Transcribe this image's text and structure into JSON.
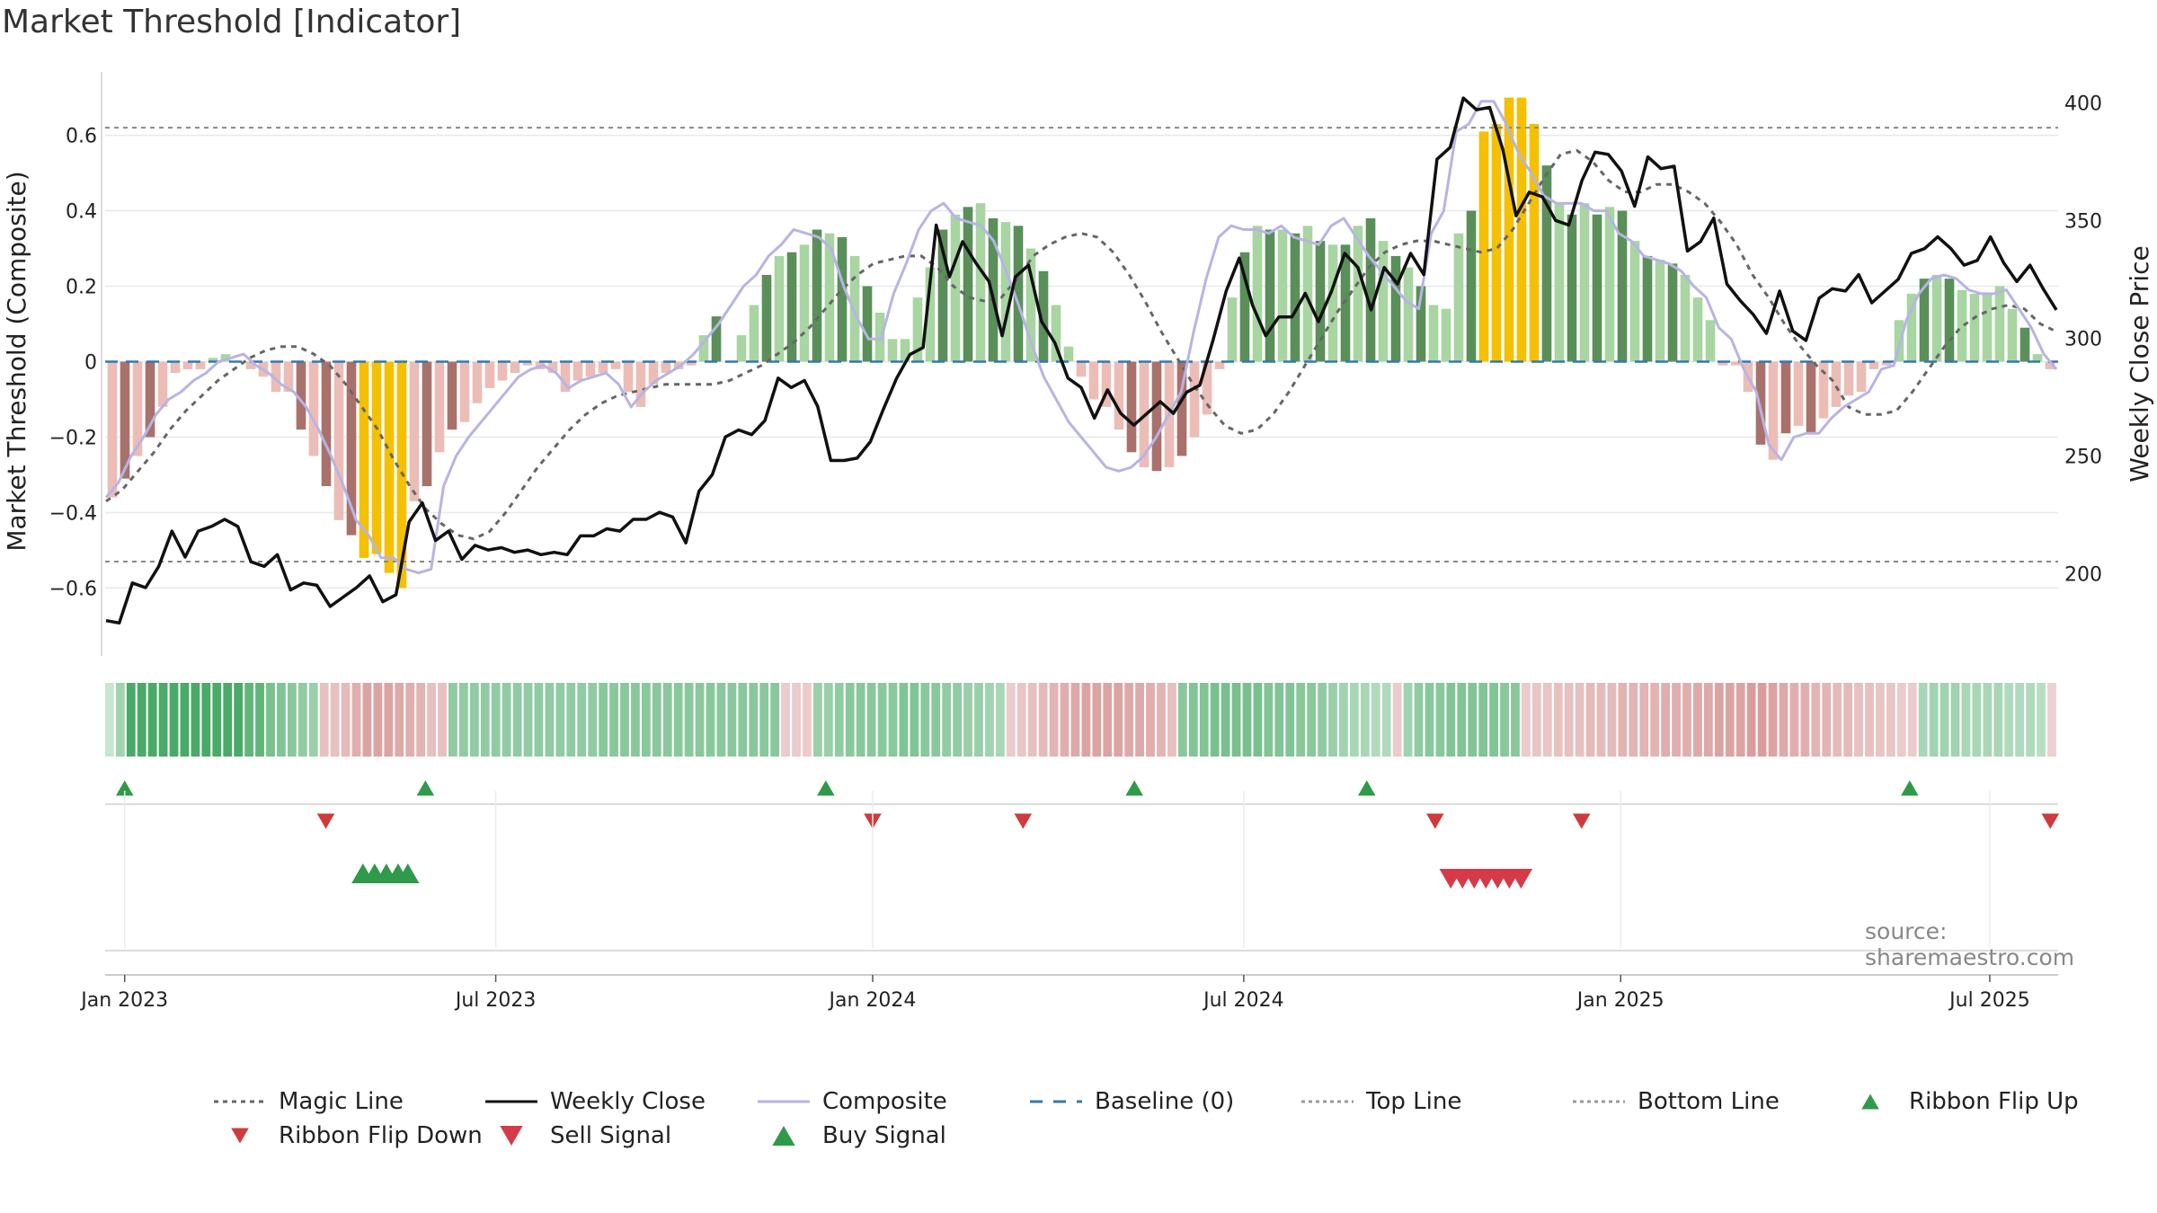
{
  "title": "Market Threshold [Indicator]",
  "source": "source: sharemaestro.com",
  "chart_data": {
    "type": "bar",
    "left_axis": {
      "label": "Market Threshold (Composite)",
      "ticks": [
        0.6,
        0.4,
        0.2,
        0,
        -0.2,
        -0.4,
        -0.6
      ],
      "tick_labels": [
        "0.6",
        "0.4",
        "0.2",
        "0",
        "−0.2",
        "−0.4",
        "−0.6"
      ],
      "ylim": [
        -0.78,
        0.78
      ]
    },
    "right_axis": {
      "label": "Weekly Close Price",
      "ticks": [
        400,
        350,
        300,
        250,
        200
      ],
      "tick_labels": [
        "400",
        "350",
        "300",
        "250",
        "200"
      ],
      "ylim": [
        165,
        415
      ]
    },
    "x_ticks": [
      "Jan 2023",
      "Jul 2023",
      "Jan 2024",
      "Jul 2024",
      "Jan 2025",
      "Jul 2025"
    ],
    "top_line": 0.62,
    "bottom_line": -0.53,
    "grid": true,
    "legend_position": "bottom",
    "composite": [
      -0.36,
      -0.32,
      -0.25,
      -0.2,
      -0.14,
      -0.1,
      -0.08,
      -0.05,
      -0.03,
      0.0,
      0.01,
      0.02,
      -0.01,
      -0.03,
      -0.06,
      -0.08,
      -0.12,
      -0.18,
      -0.25,
      -0.33,
      -0.42,
      -0.46,
      -0.52,
      -0.52,
      -0.55,
      -0.56,
      -0.55,
      -0.33,
      -0.25,
      -0.2,
      -0.16,
      -0.12,
      -0.08,
      -0.04,
      -0.02,
      -0.01,
      -0.03,
      -0.07,
      -0.05,
      -0.04,
      -0.03,
      -0.06,
      -0.12,
      -0.08,
      -0.05,
      -0.03,
      -0.01,
      0.02,
      0.06,
      0.1,
      0.15,
      0.2,
      0.23,
      0.28,
      0.31,
      0.35,
      0.34,
      0.33,
      0.3,
      0.2,
      0.12,
      0.06,
      0.06,
      0.18,
      0.26,
      0.35,
      0.4,
      0.42,
      0.38,
      0.37,
      0.36,
      0.32,
      0.24,
      0.15,
      0.05,
      -0.04,
      -0.1,
      -0.16,
      -0.2,
      -0.24,
      -0.28,
      -0.29,
      -0.28,
      -0.25,
      -0.2,
      -0.14,
      -0.08,
      0.08,
      0.22,
      0.33,
      0.36,
      0.35,
      0.35,
      0.34,
      0.36,
      0.33,
      0.32,
      0.31,
      0.36,
      0.38,
      0.33,
      0.28,
      0.24,
      0.2,
      0.16,
      0.14,
      0.34,
      0.4,
      0.61,
      0.63,
      0.69,
      0.69,
      0.63,
      0.55,
      0.5,
      0.44,
      0.42,
      0.42,
      0.42,
      0.4,
      0.4,
      0.34,
      0.32,
      0.28,
      0.27,
      0.26,
      0.24,
      0.2,
      0.17,
      0.09,
      0.06,
      -0.02,
      -0.08,
      -0.22,
      -0.26,
      -0.2,
      -0.19,
      -0.19,
      -0.15,
      -0.12,
      -0.1,
      -0.08,
      -0.02,
      -0.01,
      0.11,
      0.18,
      0.22,
      0.23,
      0.22,
      0.19,
      0.18,
      0.18,
      0.19,
      0.14,
      0.09,
      0.02,
      -0.02
    ],
    "weekly_close": [
      180,
      179,
      196,
      194,
      203,
      218,
      207,
      218,
      220,
      223,
      220,
      205,
      203,
      208,
      193,
      196,
      195,
      186,
      190,
      194,
      199,
      188,
      191,
      222,
      230,
      214,
      218,
      206,
      212,
      210,
      211,
      209,
      210,
      208,
      209,
      208,
      216,
      216,
      219,
      218,
      223,
      223,
      226,
      224,
      213,
      235,
      242,
      258,
      261,
      259,
      265,
      283,
      279,
      282,
      271,
      248,
      248,
      249,
      256,
      270,
      283,
      293,
      296,
      348,
      326,
      341,
      332,
      324,
      301,
      326,
      331,
      307,
      298,
      283,
      279,
      266,
      278,
      268,
      263,
      268,
      273,
      268,
      277,
      280,
      299,
      320,
      334,
      314,
      301,
      309,
      309,
      319,
      307,
      320,
      336,
      330,
      312,
      330,
      323,
      336,
      327,
      376,
      381,
      402,
      397,
      398,
      380,
      352,
      362,
      360,
      350,
      348,
      367,
      379,
      378,
      371,
      356,
      377,
      372,
      373,
      337,
      341,
      351,
      323,
      316,
      310,
      302,
      320,
      303,
      299,
      317,
      321,
      320,
      327,
      315,
      320,
      325,
      336,
      338,
      343,
      338,
      331,
      333,
      343,
      332,
      324,
      331,
      321,
      312
    ],
    "magic_line": [
      -0.37,
      -0.34,
      -0.29,
      -0.24,
      -0.18,
      -0.13,
      -0.09,
      -0.05,
      -0.02,
      0.01,
      0.03,
      0.04,
      0.04,
      0.02,
      -0.01,
      -0.06,
      -0.12,
      -0.18,
      -0.26,
      -0.33,
      -0.39,
      -0.43,
      -0.46,
      -0.47,
      -0.45,
      -0.4,
      -0.34,
      -0.28,
      -0.23,
      -0.18,
      -0.14,
      -0.11,
      -0.09,
      -0.08,
      -0.07,
      -0.06,
      -0.06,
      -0.06,
      -0.06,
      -0.05,
      -0.03,
      -0.01,
      0.02,
      0.05,
      0.09,
      0.14,
      0.19,
      0.23,
      0.26,
      0.27,
      0.28,
      0.28,
      0.25,
      0.2,
      0.17,
      0.16,
      0.17,
      0.22,
      0.28,
      0.31,
      0.33,
      0.34,
      0.33,
      0.29,
      0.23,
      0.16,
      0.08,
      0.01,
      -0.06,
      -0.12,
      -0.17,
      -0.19,
      -0.18,
      -0.14,
      -0.08,
      -0.01,
      0.06,
      0.13,
      0.19,
      0.25,
      0.29,
      0.31,
      0.32,
      0.32,
      0.31,
      0.3,
      0.29,
      0.3,
      0.35,
      0.42,
      0.49,
      0.55,
      0.56,
      0.53,
      0.48,
      0.45,
      0.45,
      0.47,
      0.47,
      0.45,
      0.42,
      0.37,
      0.31,
      0.23,
      0.17,
      0.1,
      0.04,
      -0.01,
      -0.05,
      -0.12,
      -0.14,
      -0.14,
      -0.13,
      -0.08,
      -0.02,
      0.04,
      0.09,
      0.12,
      0.14,
      0.15,
      0.14,
      0.1,
      0.08
    ],
    "bars": [
      -0.36,
      -0.31,
      -0.25,
      -0.2,
      -0.12,
      -0.03,
      -0.02,
      -0.02,
      0.01,
      0.02,
      0,
      -0.02,
      -0.04,
      -0.08,
      -0.08,
      -0.18,
      -0.25,
      -0.33,
      -0.42,
      -0.46,
      -0.52,
      -0.51,
      -0.56,
      -0.6,
      -0.37,
      -0.33,
      -0.24,
      -0.18,
      -0.16,
      -0.11,
      -0.07,
      -0.05,
      -0.03,
      -0.01,
      -0.02,
      -0.03,
      -0.08,
      -0.05,
      -0.04,
      -0.03,
      -0.02,
      -0.08,
      -0.12,
      -0.06,
      -0.03,
      -0.02,
      -0.01,
      0.07,
      0.12,
      0.0,
      0.07,
      0.15,
      0.23,
      0.28,
      0.29,
      0.31,
      0.35,
      0.34,
      0.33,
      0.28,
      0.2,
      0.13,
      0.06,
      0.06,
      0.17,
      0.25,
      0.35,
      0.39,
      0.41,
      0.42,
      0.38,
      0.37,
      0.36,
      0.3,
      0.24,
      0.15,
      0.04,
      -0.04,
      -0.1,
      -0.12,
      -0.18,
      -0.24,
      -0.28,
      -0.29,
      -0.28,
      -0.25,
      -0.2,
      -0.14,
      -0.02,
      0.17,
      0.29,
      0.36,
      0.35,
      0.35,
      0.34,
      0.36,
      0.32,
      0.31,
      0.31,
      0.36,
      0.38,
      0.32,
      0.28,
      0.25,
      0.2,
      0.15,
      0.14,
      0.34,
      0.4,
      0.61,
      0.63,
      0.7,
      0.7,
      0.63,
      0.52,
      0.42,
      0.39,
      0.42,
      0.39,
      0.41,
      0.4,
      0.32,
      0.28,
      0.27,
      0.26,
      0.23,
      0.17,
      0.11,
      -0.01,
      -0.01,
      -0.08,
      -0.22,
      -0.26,
      -0.19,
      -0.17,
      -0.19,
      -0.15,
      -0.12,
      -0.09,
      -0.08,
      -0.02,
      -0.01,
      0.11,
      0.18,
      0.22,
      0.23,
      0.22,
      0.19,
      0.18,
      0.18,
      0.2,
      0.14,
      0.09,
      0.02,
      -0.02
    ],
    "ribbon": [
      0.1,
      0.35,
      0.9,
      0.9,
      0.9,
      0.9,
      0.9,
      0.9,
      0.9,
      0.9,
      0.9,
      0.9,
      0.9,
      0.75,
      0.75,
      0.6,
      0.55,
      0.5,
      0.45,
      0.4,
      -0.3,
      -0.3,
      -0.35,
      -0.45,
      -0.55,
      -0.55,
      -0.55,
      -0.5,
      -0.45,
      -0.4,
      -0.3,
      -0.3,
      0.45,
      0.45,
      0.45,
      0.45,
      0.45,
      0.45,
      0.45,
      0.45,
      0.45,
      0.45,
      0.45,
      0.45,
      0.45,
      0.45,
      0.5,
      0.5,
      0.5,
      0.5,
      0.5,
      0.5,
      0.5,
      0.5,
      0.5,
      0.5,
      0.5,
      0.5,
      0.5,
      0.5,
      0.5,
      0.5,
      0.5,
      -0.2,
      -0.2,
      -0.2,
      0.4,
      0.4,
      0.45,
      0.5,
      0.5,
      0.5,
      0.5,
      0.5,
      0.55,
      0.55,
      0.5,
      0.5,
      0.45,
      0.45,
      0.4,
      0.4,
      0.35,
      0.3,
      -0.2,
      -0.25,
      -0.3,
      -0.35,
      -0.4,
      -0.45,
      -0.5,
      -0.55,
      -0.55,
      -0.55,
      -0.55,
      -0.5,
      -0.5,
      -0.45,
      -0.4,
      -0.3,
      0.5,
      0.55,
      0.55,
      0.6,
      0.6,
      0.6,
      0.6,
      0.6,
      0.55,
      0.55,
      0.55,
      0.5,
      0.5,
      0.45,
      0.4,
      0.35,
      0.3,
      0.3,
      0.25,
      0.25,
      -0.2,
      0.35,
      0.45,
      0.5,
      0.5,
      0.55,
      0.55,
      0.55,
      0.55,
      0.55,
      0.5,
      0.5,
      -0.2,
      -0.25,
      -0.25,
      -0.3,
      -0.3,
      -0.3,
      -0.35,
      -0.35,
      -0.35,
      -0.4,
      -0.4,
      -0.4,
      -0.4,
      -0.45,
      -0.45,
      -0.45,
      -0.5,
      -0.5,
      -0.55,
      -0.55,
      -0.55,
      -0.6,
      -0.6,
      -0.55,
      -0.5,
      -0.45,
      -0.45,
      -0.4,
      -0.4,
      -0.35,
      -0.35,
      -0.3,
      -0.3,
      -0.25,
      -0.25,
      -0.2,
      -0.2,
      0.3,
      0.35,
      0.35,
      0.35,
      0.3,
      0.3,
      0.3,
      0.3,
      0.25,
      0.25,
      0.25,
      0.2,
      -0.15
    ],
    "ribbon_flip_up_x": [
      0.01,
      0.164,
      0.369,
      0.527,
      0.646,
      0.924
    ],
    "ribbon_flip_down_x": [
      0.113,
      0.393,
      0.47,
      0.681,
      0.756,
      0.996
    ],
    "buy_signal_x": [
      0.132,
      0.138,
      0.144,
      0.15,
      0.155
    ],
    "sell_signal_x": [
      0.689,
      0.695,
      0.701,
      0.707,
      0.713,
      0.719,
      0.725
    ],
    "legend": [
      "Magic Line",
      "Weekly Close",
      "Composite",
      "Baseline (0)",
      "Top Line",
      "Bottom Line",
      "Ribbon Flip Up",
      "Ribbon Flip Down",
      "Sell Signal",
      "Buy Signal"
    ],
    "colors": {
      "strong_pos": "#5a8f5a",
      "light_pos": "#a8d5a2",
      "strong_neg": "#a9716c",
      "light_neg": "#ebbdb6",
      "extreme": "#f5c000",
      "price": "#111111",
      "composite": "#b8b4e3",
      "magic": "#666666",
      "baseline": "#2f7ab0",
      "buy": "#2e9a4a",
      "sell": "#d63a48",
      "ribbon_pos": "#3aa35a",
      "ribbon_neg": "#c86f6f"
    }
  }
}
